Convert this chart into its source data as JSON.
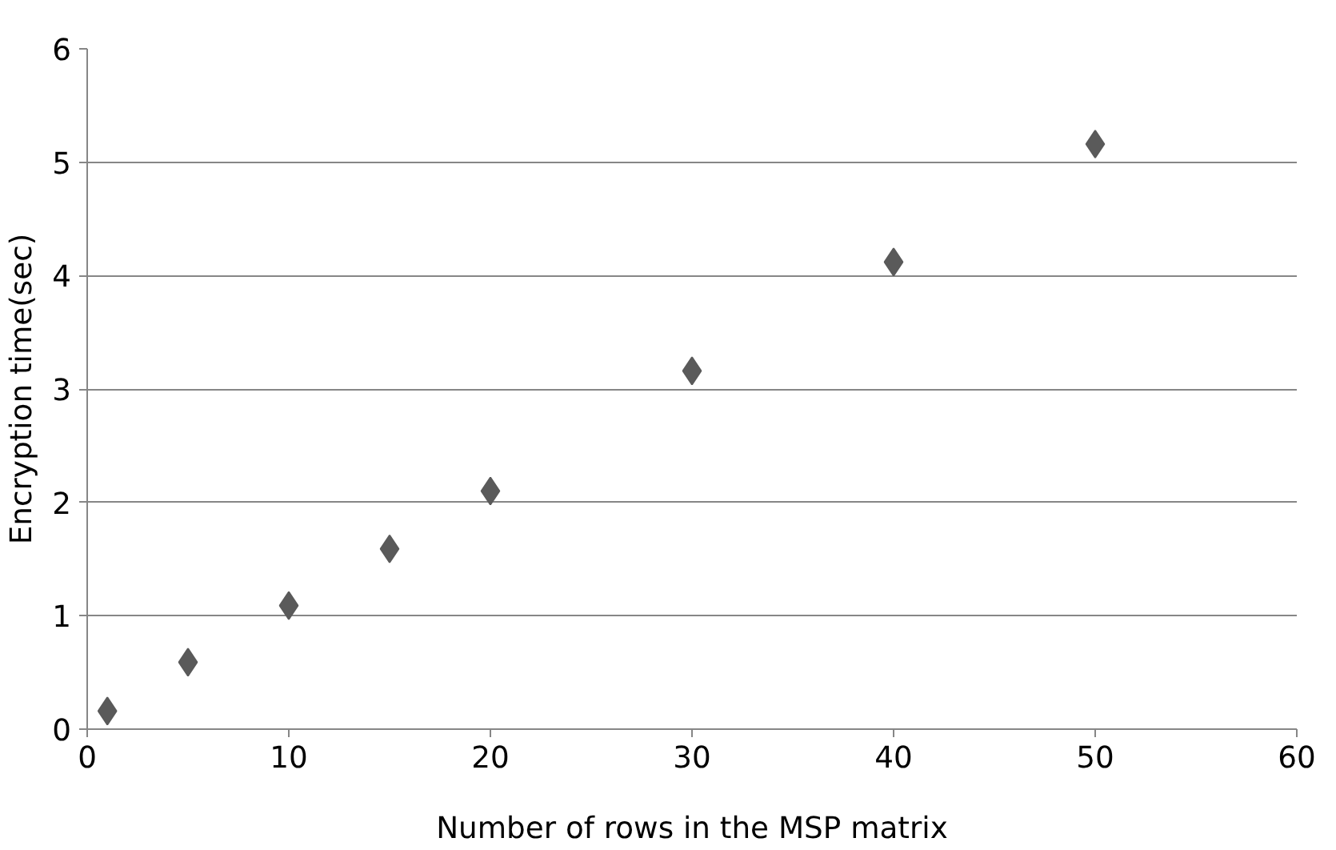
{
  "chart_data": {
    "type": "scatter",
    "xlabel": "Number of rows in the MSP matrix",
    "ylabel": "Encryption time(sec)",
    "x": [
      1,
      5,
      10,
      15,
      20,
      30,
      40,
      50
    ],
    "values": [
      0.16,
      0.59,
      1.09,
      1.59,
      2.1,
      3.16,
      4.12,
      5.16
    ],
    "color": "#5a5a5a",
    "marker": "diamond",
    "xlim": [
      0,
      60
    ],
    "ylim": [
      0,
      6
    ],
    "xticks": [
      0,
      10,
      20,
      30,
      40,
      50,
      60
    ],
    "yticks": [
      0,
      1,
      2,
      3,
      4,
      5,
      6
    ],
    "grid": "y"
  }
}
